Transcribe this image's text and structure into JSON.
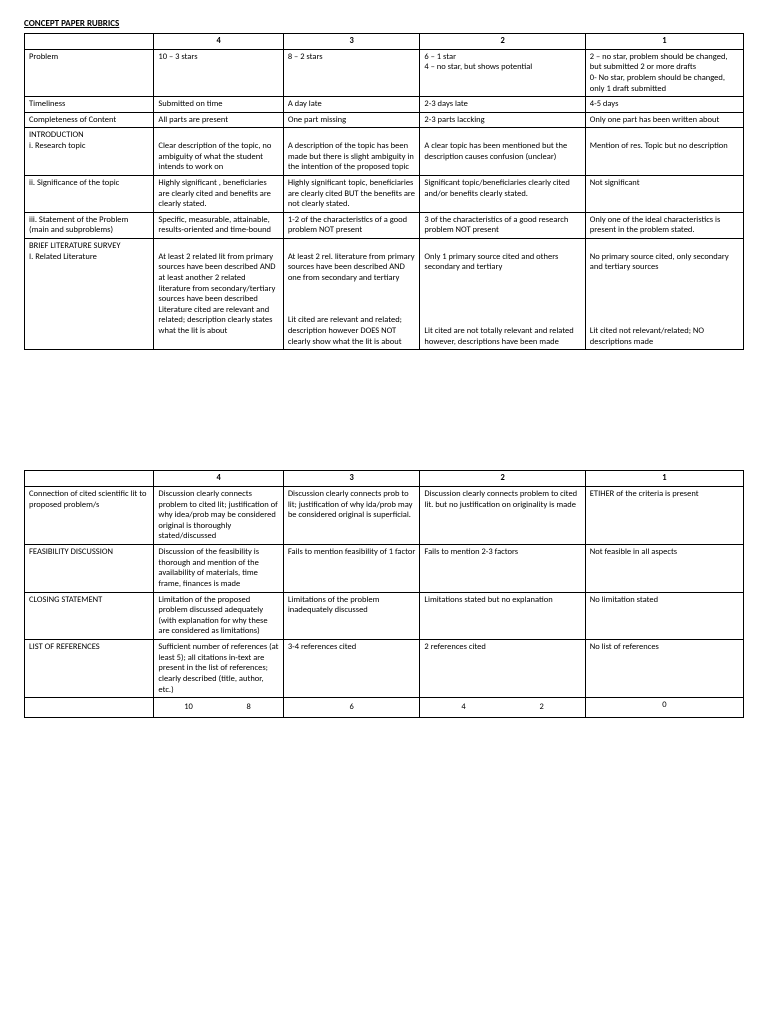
{
  "title": "CONCEPT PAPER RUBRICS",
  "headers": {
    "c1": "4",
    "c2": "3",
    "c3": "2",
    "c4": "1"
  },
  "table1": [
    {
      "label": "Problem",
      "c1": "10 – 3 stars",
      "c2": "8 – 2 stars",
      "c3": "6 – 1 star\n4 – no star, but shows potential",
      "c4": "2 – no star, problem should be changed, but submitted 2 or more drafts\n0-  No star, problem should be changed, only 1 draft submitted"
    },
    {
      "label": "Timeliness",
      "c1": "Submitted on time",
      "c2": "A day late",
      "c3": "2-3 days  late",
      "c4": "4-5 days"
    },
    {
      "label": "Completeness of Content",
      "c1": "All parts are present",
      "c2": "One part missing",
      "c3": "2-3 parts laccking",
      "c4": "Only one part has been  written about"
    },
    {
      "label": "INTRODUCTION\ni.  Research topic",
      "c1": "\nClear description of the topic, no ambiguity of what the student intends to work on",
      "c2": "\nA description of the topic has been made but there is slight ambiguity in the intention of the proposed topic",
      "c3": "\nA clear topic has been mentioned but the description causes confusion (unclear)",
      "c4": "\nMention of res. Topic  but no description"
    },
    {
      "label": "ii. Significance of the topic",
      "c1": "Highly significant , beneficiaries are clearly cited and benefits are clearly stated.",
      "c2": "Highly significant topic, beneficiaries are clearly cited BUT the benefits are not clearly stated.",
      "c3": "Significant topic/beneficiaries clearly cited and/or benefits clearly stated.",
      "c4": "Not significant"
    },
    {
      "label": "iii. Statement of the Problem (main and subproblems)",
      "c1": "Specific, measurable, attainable, results-oriented and time-bound",
      "c2": "1-2 of the characteristics of a good  problem NOT present",
      "c3": "3 of the characteristics of a good research problem NOT present",
      "c4": "Only one of the ideal characteristics is present in the problem stated."
    },
    {
      "label": "BRIEF LITERATURE SURVEY\nI.  Related Literature",
      "c1": "\nAt least 2 related lit from primary sources have been described AND at least another 2 related literature from secondary/tertiary sources have been described\nLiterature cited are relevant and related; description clearly states what the lit is about",
      "c2": "\nAt least 2 rel. literature from primary sources have been described AND one from secondary and tertiary\n\n\n\nLit cited are relevant and related; description however DOES NOT clearly show what the lit is about",
      "c3": "\nOnly 1 primary source cited and others secondary and tertiary\n\n\n\n\n\nLit cited are not totally relevant and related however, descriptions have been made",
      "c4": "\nNo primary source cited, only secondary and tertiary sources\n\n\n\n\n\nLit cited not relevant/related; NO descriptions  made"
    }
  ],
  "table2": [
    {
      "label": "Connection of cited scientific lit to proposed problem/s",
      "c1": "Discussion clearly connects problem to cited lit; justification of why idea/prob may be considered original is thoroughly stated/discussed",
      "c2": "Discussion clearly connects prob to lit; justification of why ida/prob may  be considered original is superficial.",
      "c3": "Discussion clearly connects problem to cited lit. but no justification on originality is made",
      "c4": "ETIHER of the criteria is present"
    },
    {
      "label": "FEASIBILITY DISCUSSION",
      "c1": "Discussion of the feasibility is thorough and mention of the availability of materials, time frame, finances is made",
      "c2": "Fails to mention feasibility of 1  factor",
      "c3": "Fails to mention 2-3 factors",
      "c4": "Not feasible in all aspects"
    },
    {
      "label": "CLOSING STATEMENT",
      "c1": "Limitation of the proposed problem discussed adequately (with explanation for why these are considered as limitations)",
      "c2": "Limitations of the problem inadequately discussed",
      "c3": "Limitations stated but no explanation",
      "c4": "No limitation stated"
    },
    {
      "label": "LIST OF REFERENCES",
      "c1": "Sufficient number of references (at least 5); all citations in-text are present in  the list of references; clearly described (title, author, etc.)",
      "c2": "3-4 references cited",
      "c3": "2 references cited",
      "c4": "No list of references"
    }
  ],
  "scores": {
    "s1": "10",
    "s2": "8",
    "s3": "6",
    "s4": "4",
    "s5": "2",
    "s6": "0"
  }
}
